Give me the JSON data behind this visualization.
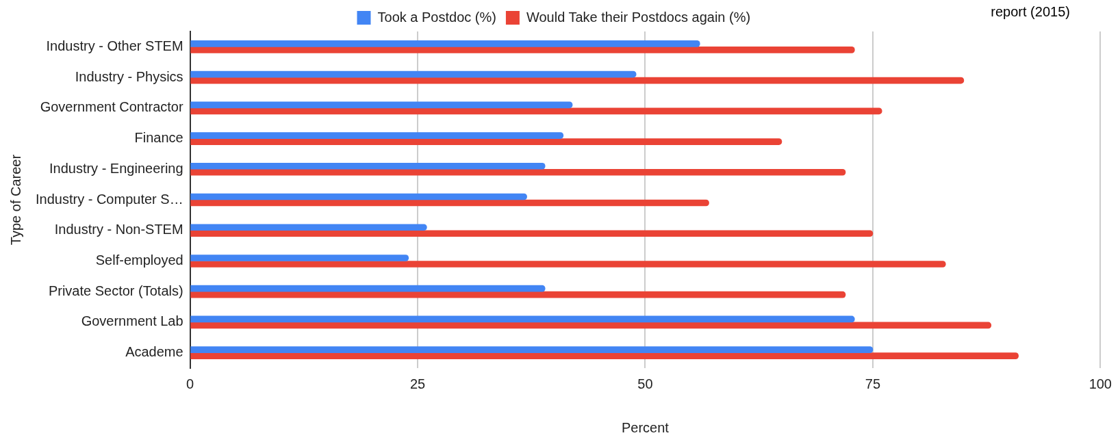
{
  "chart_data": {
    "type": "bar",
    "orientation": "horizontal",
    "categories": [
      "Industry - Other STEM",
      "Industry - Physics",
      "Government Contractor",
      "Finance",
      "Industry - Engineering",
      "Industry - Computer S…",
      "Industry - Non-STEM",
      "Self-employed",
      "Private Sector (Totals)",
      "Government Lab",
      "Academe"
    ],
    "series": [
      {
        "name": "Took a Postdoc (%)",
        "color": "#4285f4",
        "values": [
          56,
          49,
          42,
          41,
          39,
          37,
          26,
          24,
          39,
          73,
          75
        ]
      },
      {
        "name": "Would Take their Postdocs again (%)",
        "color": "#ea4335",
        "values": [
          73,
          85,
          76,
          65,
          72,
          57,
          75,
          83,
          72,
          88,
          91
        ]
      }
    ],
    "xlabel": "Percent",
    "ylabel": "Type of Career",
    "xlim": [
      0,
      100
    ],
    "xticks": [
      0,
      25,
      50,
      75,
      100
    ],
    "grid": "x",
    "legend": "top",
    "annotations": [
      "report (2015)"
    ]
  }
}
